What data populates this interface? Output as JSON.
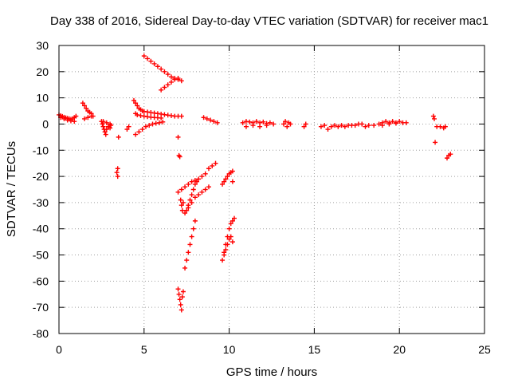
{
  "chart_data": {
    "type": "scatter",
    "title": "Day 338 of 2016, Sidereal Day-to-day VTEC variation (SDTVAR) for receiver mac1",
    "xlabel": "GPS time / hours",
    "ylabel": "SDTVAR / TECUs",
    "xlim": [
      0,
      25
    ],
    "ylim": [
      -80,
      30
    ],
    "xticks": [
      0,
      5,
      10,
      15,
      20,
      25
    ],
    "yticks": [
      30,
      20,
      10,
      0,
      -10,
      -20,
      -30,
      -40,
      -50,
      -60,
      -70,
      -80
    ],
    "xtick_labels": [
      "0",
      "5",
      "10",
      "15",
      "20",
      "25"
    ],
    "ytick_labels": [
      "30",
      "20",
      "10",
      "0",
      "-10",
      "-20",
      "-30",
      "-40",
      "-50",
      "-60",
      "-70",
      "-80"
    ],
    "grid": true,
    "legend": "none",
    "marker": "+",
    "series": [
      {
        "name": "SDTVAR",
        "color": "#ff0000",
        "x": [
          0.0,
          0.1,
          0.2,
          0.3,
          0.4,
          0.5,
          0.6,
          0.7,
          0.8,
          0.9,
          1.0,
          0.1,
          0.3,
          0.5,
          0.7,
          0.9,
          1.4,
          1.5,
          1.6,
          1.7,
          1.8,
          1.9,
          2.0,
          1.5,
          1.7,
          1.9,
          2.5,
          2.55,
          2.6,
          2.65,
          2.7,
          2.75,
          2.8,
          2.9,
          3.0,
          3.05,
          2.6,
          2.8,
          3.0,
          3.5,
          3.45,
          3.4,
          3.45,
          4.0,
          4.1,
          4.4,
          4.5,
          4.6,
          4.7,
          4.8,
          4.9,
          5.0,
          5.2,
          5.4,
          5.6,
          5.8,
          6.0,
          6.2,
          6.4,
          6.6,
          6.8,
          7.0,
          7.2,
          4.5,
          4.6,
          4.8,
          5.0,
          5.2,
          5.4,
          5.6,
          5.8,
          6.0,
          4.5,
          4.7,
          4.9,
          5.1,
          5.3,
          5.5,
          5.7,
          5.9,
          6.1,
          5.0,
          5.2,
          5.4,
          5.6,
          5.8,
          6.0,
          6.2,
          6.4,
          6.6,
          6.8,
          7.0,
          7.2,
          6.0,
          6.2,
          6.4,
          6.6,
          6.8,
          7.0,
          7.0,
          7.05,
          7.1,
          7.15,
          7.2,
          7.25,
          7.3,
          7.0,
          7.05,
          7.1,
          7.15,
          7.2,
          7.25,
          7.3,
          7.0,
          7.2,
          7.4,
          7.6,
          7.8,
          8.0,
          8.2,
          8.4,
          8.6,
          8.8,
          9.0,
          9.2,
          7.4,
          7.6,
          7.8,
          8.0,
          8.2,
          8.4,
          8.6,
          8.8,
          7.4,
          7.5,
          7.6,
          7.7,
          7.8,
          7.9,
          8.0,
          7.5,
          7.6,
          7.7,
          7.8,
          7.9,
          8.0,
          8.1,
          8.5,
          8.7,
          8.9,
          9.1,
          9.3,
          9.6,
          9.7,
          9.8,
          9.9,
          10.0,
          10.1,
          10.2,
          10.2,
          9.6,
          9.7,
          9.8,
          9.9,
          10.0,
          10.1,
          10.2,
          10.3,
          9.7,
          9.8,
          9.9,
          10.0,
          10.1,
          10.2,
          10.8,
          11.0,
          11.2,
          11.4,
          11.6,
          11.8,
          12.0,
          12.2,
          12.4,
          11.0,
          11.4,
          11.8,
          12.2,
          12.6,
          13.2,
          13.3,
          13.4,
          13.5,
          13.6,
          14.4,
          14.5,
          15.4,
          15.6,
          15.8,
          16.0,
          16.2,
          16.4,
          16.6,
          16.8,
          17.0,
          17.2,
          17.4,
          17.6,
          17.8,
          18.0,
          18.2,
          18.5,
          18.8,
          19.0,
          19.2,
          19.4,
          19.6,
          19.8,
          20.0,
          20.2,
          20.4,
          19.0,
          19.4,
          19.8,
          22.0,
          22.05,
          22.1,
          22.2,
          22.4,
          22.6,
          22.7,
          22.8,
          22.9,
          23.0
        ],
        "y": [
          3.5,
          3.2,
          2.9,
          2.6,
          2.4,
          2.2,
          2.0,
          1.8,
          2.0,
          2.5,
          3.0,
          2.5,
          2.0,
          1.5,
          1.2,
          1.0,
          8.0,
          7.0,
          6.0,
          5.0,
          4.5,
          4.0,
          3.0,
          2.0,
          2.5,
          3.0,
          1.0,
          0.0,
          -1.0,
          -2.0,
          -3.0,
          -4.0,
          -2.0,
          -1.0,
          0.0,
          -0.5,
          1.0,
          0.5,
          -1.5,
          -5.0,
          -17.0,
          -18.5,
          -20.0,
          -2.0,
          -1.0,
          9.0,
          8.0,
          7.0,
          6.0,
          5.5,
          5.0,
          4.8,
          4.6,
          4.4,
          4.2,
          4.0,
          3.8,
          3.6,
          3.4,
          3.2,
          3.0,
          3.0,
          3.0,
          4.0,
          3.5,
          3.2,
          3.0,
          2.8,
          2.6,
          2.5,
          2.4,
          2.3,
          -4.0,
          -3.0,
          -2.0,
          -1.0,
          -0.5,
          0.0,
          0.3,
          0.5,
          0.8,
          26.0,
          25.0,
          24.0,
          23.0,
          22.0,
          21.0,
          20.0,
          19.0,
          18.0,
          17.5,
          17.0,
          16.5,
          13.0,
          14.0,
          15.0,
          16.0,
          17.0,
          17.5,
          -5.0,
          -12.0,
          -12.5,
          -29.0,
          -31.0,
          -33.0,
          -30.0,
          -63.0,
          -65.0,
          -67.0,
          -69.0,
          -71.0,
          -66.0,
          -64.0,
          -26.0,
          -25.0,
          -24.0,
          -23.0,
          -22.0,
          -21.5,
          -21.0,
          -20.0,
          -19.0,
          -17.0,
          -16.0,
          -15.0,
          -34.0,
          -32.0,
          -30.0,
          -28.0,
          -27.0,
          -26.0,
          -25.0,
          -24.0,
          -55.0,
          -52.0,
          -49.0,
          -46.0,
          -43.0,
          -40.0,
          -37.0,
          -33.0,
          -31.0,
          -29.0,
          -27.0,
          -25.0,
          -23.0,
          -22.0,
          2.5,
          2.0,
          1.5,
          1.0,
          0.5,
          -23.0,
          -22.0,
          -21.0,
          -20.0,
          -19.0,
          -18.5,
          -18.0,
          -22.0,
          -52.0,
          -49.0,
          -46.0,
          -43.0,
          -40.0,
          -38.0,
          -37.0,
          -36.0,
          -50.0,
          -48.0,
          -46.0,
          -44.0,
          -43.0,
          -45.0,
          0.5,
          1.0,
          0.8,
          0.5,
          1.0,
          0.5,
          0.8,
          0.2,
          0.5,
          -1.0,
          -0.5,
          -1.0,
          -0.5,
          0.0,
          0.0,
          1.0,
          -1.0,
          0.5,
          0.0,
          -1.0,
          0.0,
          -1.0,
          -0.5,
          -2.0,
          -1.0,
          -0.5,
          -1.0,
          -0.5,
          -1.0,
          -0.5,
          -0.5,
          -0.5,
          0.0,
          0.0,
          -1.0,
          -0.5,
          -0.5,
          0.0,
          0.5,
          1.0,
          0.5,
          1.0,
          0.5,
          1.0,
          0.5,
          0.5,
          -0.5,
          0.0,
          0.3,
          3.0,
          2.0,
          -7.0,
          -1.0,
          -1.0,
          -1.5,
          -1.0,
          -13.0,
          -12.0,
          -11.5
        ]
      }
    ]
  }
}
